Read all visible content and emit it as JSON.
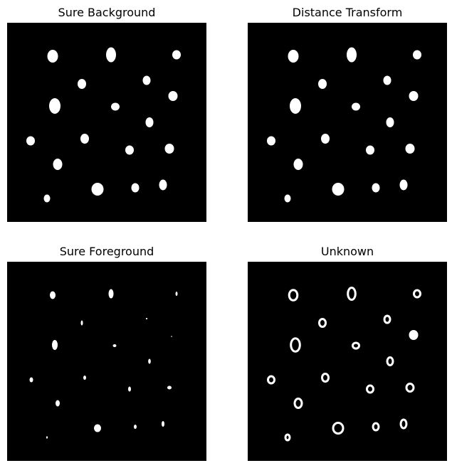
{
  "figure": {
    "background_color": "#ffffff",
    "image_background_color": "#000000",
    "blob_color": "#ffffff",
    "panels": [
      {
        "title": "Sure Background",
        "kind": "sure-background"
      },
      {
        "title": "Distance Transform",
        "kind": "distance-transform"
      },
      {
        "title": "Sure Foreground",
        "kind": "sure-foreground"
      },
      {
        "title": "Unknown",
        "kind": "unknown"
      }
    ]
  }
}
